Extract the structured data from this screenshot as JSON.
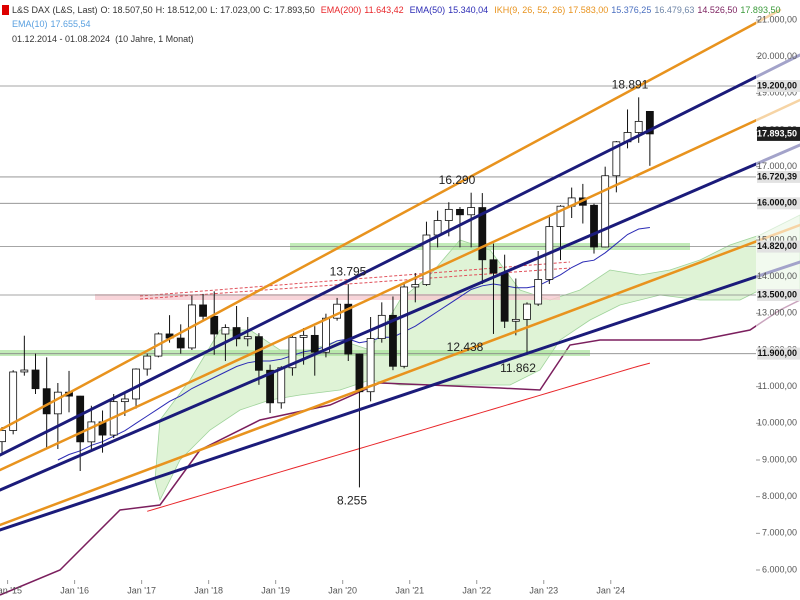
{
  "chart_data": {
    "type": "candlestick",
    "instrument": "L&S DAX (L&S, Last)",
    "ohlc_labels": [
      "O: 18.507,50",
      "H: 18.512,00",
      "L: 17.023,00",
      "C: 17.893,50"
    ],
    "date_range": "01.12.2014 - 01.08.2024",
    "period": "(10 Jahre, 1 Monat)",
    "ikh": {
      "name": "IKH(9, 26, 52, 26)",
      "labels": [
        "17.583,00",
        "15.376,25",
        "16.479,63",
        "14.526,50",
        "17.893,50"
      ]
    },
    "ema10": {
      "name": "EMA(10)",
      "label": "17.655,54"
    },
    "open": [
      9500,
      9805,
      11401,
      11454,
      10945,
      10259,
      10850,
      10743,
      9495,
      10039,
      9680,
      10592,
      10665,
      11481,
      11834,
      12438,
      12325,
      12056,
      13229,
      12918,
      12436,
      12612,
      12306,
      12364,
      11447,
      10559,
      11516,
      12344,
      12399,
      11939,
      12867,
      13249,
      11890,
      10862,
      12311,
      12945,
      11556,
      13719,
      13786,
      15136,
      15531,
      15835,
      15688,
      15885,
      14461,
      14098,
      12784,
      12835,
      13253,
      13924,
      15365,
      15922,
      16148,
      15947,
      14810,
      16752,
      17678,
      17932,
      18507.5
    ],
    "high": [
      9900,
      11450,
      12390,
      11900,
      11800,
      11100,
      11430,
      10750,
      10480,
      10350,
      10800,
      10830,
      11500,
      11900,
      12480,
      12950,
      12700,
      13480,
      13530,
      13600,
      12700,
      13200,
      12900,
      12460,
      11600,
      11560,
      12400,
      12600,
      12650,
      12990,
      13420,
      13795,
      11900,
      12900,
      13300,
      13460,
      13800,
      14100,
      15500,
      15800,
      16030,
      15900,
      16290,
      16280,
      14900,
      14600,
      13950,
      13300,
      14700,
      15650,
      15950,
      16430,
      16530,
      15990,
      17000,
      17700,
      18560,
      18891,
      18512
    ],
    "low": [
      9200,
      9700,
      11300,
      10800,
      9340,
      9300,
      10300,
      8700,
      9300,
      9200,
      9600,
      10200,
      10400,
      11300,
      11800,
      12200,
      11900,
      12000,
      12800,
      11870,
      11700,
      12100,
      12100,
      11050,
      10280,
      10400,
      11300,
      11600,
      11300,
      11800,
      12800,
      11700,
      8255,
      10600,
      12200,
      11450,
      11500,
      13300,
      13750,
      14800,
      15100,
      14800,
      14800,
      13800,
      12438,
      12600,
      12400,
      11862,
      13200,
      13800,
      14450,
      15600,
      15450,
      14630,
      14800,
      16300,
      17500,
      17650,
      17023
    ],
    "close": [
      9805,
      11401,
      11454,
      10945,
      10259,
      10850,
      10743,
      9495,
      10039,
      9680,
      10592,
      10665,
      11481,
      11834,
      12438,
      12325,
      12056,
      13229,
      12918,
      12436,
      12612,
      12306,
      12364,
      11447,
      10559,
      11516,
      12344,
      12399,
      11939,
      12867,
      13249,
      11890,
      10862,
      12311,
      12945,
      11556,
      13719,
      13786,
      15136,
      15531,
      15835,
      15688,
      15885,
      14461,
      14098,
      12784,
      12835,
      13253,
      13924,
      15365,
      15922,
      16148,
      15947,
      14810,
      16752,
      17678,
      17932,
      18235,
      17893.5
    ],
    "series": [
      {
        "name": "EMA(200)",
        "last_label": "11.643,42",
        "color": "#e8262a",
        "values": [
          null,
          null,
          null,
          null,
          null,
          null,
          null,
          null,
          null,
          null,
          null,
          null,
          null,
          7600,
          7690,
          7780,
          7870,
          7960,
          8050,
          8140,
          8230,
          8320,
          8410,
          8500,
          8590,
          8680,
          8770,
          8860,
          8950,
          9040,
          9130,
          9220,
          9310,
          9400,
          9490,
          9580,
          9670,
          9760,
          9850,
          9940,
          10030,
          10120,
          10210,
          10300,
          10390,
          10480,
          10570,
          10660,
          10750,
          10840,
          10930,
          11020,
          11110,
          11200,
          11290,
          11380,
          11470,
          11560,
          11643.42
        ]
      },
      {
        "name": "EMA(50)",
        "last_label": "15.340,04",
        "color": "#2b2bb5",
        "values": [
          null,
          null,
          null,
          null,
          null,
          9000,
          9150,
          9250,
          9400,
          9500,
          9650,
          9800,
          10000,
          10200,
          10400,
          10600,
          10750,
          10950,
          11100,
          11250,
          11400,
          11550,
          11650,
          11700,
          11700,
          11750,
          11850,
          11950,
          12000,
          12100,
          12250,
          12300,
          12200,
          12250,
          12350,
          12350,
          12500,
          12650,
          12850,
          13050,
          13250,
          13450,
          13650,
          13750,
          13800,
          13750,
          13700,
          13700,
          13750,
          13900,
          14050,
          14250,
          14400,
          14450,
          14650,
          14900,
          15150,
          15300,
          15340.04
        ]
      }
    ],
    "xticks": [
      {
        "value": 0.5,
        "label": "Jan '15"
      },
      {
        "value": 6.5,
        "label": "Jan '16"
      },
      {
        "value": 12.5,
        "label": "Jan '17"
      },
      {
        "value": 18.5,
        "label": "Jan '18"
      },
      {
        "value": 24.5,
        "label": "Jan '19"
      },
      {
        "value": 30.5,
        "label": "Jan '20"
      },
      {
        "value": 36.5,
        "label": "Jan '21"
      },
      {
        "value": 42.5,
        "label": "Jan '22"
      },
      {
        "value": 48.5,
        "label": "Jan '23"
      },
      {
        "value": 54.5,
        "label": "Jan '24"
      }
    ],
    "ylim": [
      6000,
      21000
    ],
    "yticks": [
      {
        "value": 6000,
        "label": "6.000,00"
      },
      {
        "value": 7000,
        "label": "7.000,00"
      },
      {
        "value": 8000,
        "label": "8.000,00"
      },
      {
        "value": 9000,
        "label": "9.000,00"
      },
      {
        "value": 10000,
        "label": "10.000,00"
      },
      {
        "value": 11000,
        "label": "11.000,00"
      },
      {
        "value": 12000,
        "label": "12.000,00"
      },
      {
        "value": 13000,
        "label": "13.000,00"
      },
      {
        "value": 14000,
        "label": "14.000,00"
      },
      {
        "value": 15000,
        "label": "15.000,00"
      },
      {
        "value": 16000,
        "label": "16.000,00"
      },
      {
        "value": 17000,
        "label": "17.000,00"
      },
      {
        "value": 18000,
        "label": "18.000,00"
      },
      {
        "value": 19000,
        "label": "19.000,00"
      },
      {
        "value": 20000,
        "label": "20.000,00"
      },
      {
        "value": 21000,
        "label": "21.000,00"
      }
    ],
    "levels": [
      {
        "value": 19200,
        "label": "19.200,00"
      },
      {
        "value": 16720.39,
        "label": "16.720,39"
      },
      {
        "value": 16000,
        "label": "16.000,00"
      },
      {
        "value": 14820,
        "label": "14.820,00"
      },
      {
        "value": 13500,
        "label": "13.500,00"
      },
      {
        "value": 11900,
        "label": "11.900,00"
      }
    ],
    "last": {
      "value": 17893.5,
      "label": "17.893,50"
    },
    "annotations": [
      {
        "value": 18891,
        "label": "18.891"
      },
      {
        "value": 16290,
        "label": "16.290"
      },
      {
        "value": 13795,
        "label": "13.795"
      },
      {
        "value": 12438,
        "label": "12.438"
      },
      {
        "value": 11862,
        "label": "11.862"
      },
      {
        "value": 8255,
        "label": "8.255"
      }
    ]
  }
}
